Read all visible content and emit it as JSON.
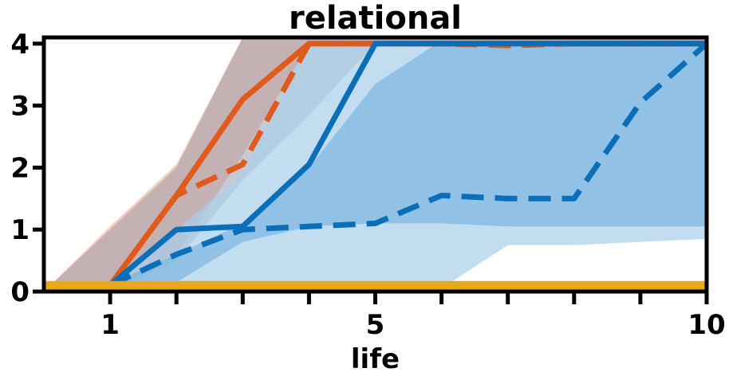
{
  "chart_data": {
    "type": "line",
    "title": "relational",
    "xlabel": "life",
    "ylabel": "",
    "xlim": [
      0,
      10
    ],
    "ylim": [
      0,
      4.1
    ],
    "x_tick_values": [
      1,
      2,
      3,
      4,
      5,
      6,
      7,
      8,
      9,
      10
    ],
    "x_tick_labels": [
      "1",
      "",
      "",
      "",
      "5",
      "",
      "",
      "",
      "",
      "10"
    ],
    "y_tick_values": [
      0,
      1,
      2,
      3,
      4
    ],
    "y_tick_labels": [
      "0",
      "1",
      "2",
      "3",
      "4"
    ],
    "grid": false,
    "legend": "none",
    "bands": [
      {
        "color": "#e8a080",
        "opacity": 0.55,
        "x": [
          0,
          1,
          2,
          3,
          4,
          5,
          6,
          7,
          8,
          9,
          10
        ],
        "lower": [
          0,
          0,
          0.6,
          2.2,
          4.0,
          4.0,
          4.0,
          4.0,
          4.0,
          4.0,
          4.0
        ],
        "upper": [
          0,
          1.05,
          2.05,
          4.1,
          4.1,
          4.1,
          4.1,
          4.1,
          4.1,
          4.1,
          4.1
        ]
      },
      {
        "color": "#9c9cb0",
        "opacity": 0.55,
        "x": [
          0,
          1,
          2,
          3,
          4,
          5,
          6,
          7,
          8,
          9,
          10
        ],
        "lower": [
          0,
          0,
          0.5,
          1.8,
          2.85,
          4.0,
          4.0,
          4.0,
          4.0,
          4.0,
          4.0
        ],
        "upper": [
          0,
          1.0,
          2.0,
          4.1,
          4.1,
          4.1,
          4.1,
          4.1,
          4.1,
          4.1,
          4.1
        ]
      },
      {
        "color": "#a9cfea",
        "opacity": 0.7,
        "x": [
          0,
          1,
          2,
          3,
          4,
          5,
          6,
          7,
          8,
          9,
          10
        ],
        "lower": [
          0,
          0,
          0,
          0,
          0,
          0,
          0.05,
          0.75,
          0.75,
          0.8,
          0.85
        ],
        "upper": [
          0,
          0.12,
          1.0,
          1.9,
          4.05,
          4.05,
          4.05,
          4.05,
          4.05,
          4.05,
          4.05
        ]
      },
      {
        "color": "#6fb0dd",
        "opacity": 0.6,
        "x": [
          0,
          1,
          2,
          3,
          4,
          5,
          6,
          7,
          8,
          9,
          10
        ],
        "lower": [
          0,
          0,
          0.15,
          0.8,
          1.05,
          1.1,
          1.1,
          1.05,
          1.05,
          1.05,
          1.05
        ],
        "upper": [
          0,
          0.12,
          0.6,
          1.1,
          2.0,
          3.35,
          4.05,
          4.05,
          4.05,
          4.05,
          4.05
        ]
      }
    ],
    "series": [
      {
        "color": "#e05a1c",
        "style": "solid",
        "x": [
          1,
          2,
          3,
          4,
          5,
          6,
          7,
          8,
          9,
          10
        ],
        "values": [
          0.1,
          1.55,
          3.1,
          4.0,
          4.0,
          4.0,
          4.0,
          4.0,
          4.0,
          4.0
        ]
      },
      {
        "color": "#e05a1c",
        "style": "dashed",
        "x": [
          1,
          2,
          3,
          4,
          5,
          6,
          7,
          8,
          9,
          10
        ],
        "values": [
          0.1,
          1.55,
          2.05,
          4.0,
          4.0,
          4.0,
          3.97,
          4.0,
          4.0,
          4.0
        ]
      },
      {
        "color": "#0a6fb8",
        "style": "solid",
        "x": [
          1,
          2,
          3,
          4,
          5,
          6,
          7,
          8,
          9,
          10
        ],
        "values": [
          0.1,
          1.0,
          1.05,
          2.05,
          4.0,
          4.0,
          4.0,
          4.0,
          4.0,
          4.0
        ]
      },
      {
        "color": "#0a6fb8",
        "style": "dashed",
        "x": [
          1,
          2,
          3,
          4,
          5,
          6,
          7,
          8,
          9,
          10
        ],
        "values": [
          0.1,
          0.6,
          1.0,
          1.05,
          1.1,
          1.55,
          1.5,
          1.5,
          3.05,
          4.0
        ]
      },
      {
        "color": "#e8a81c",
        "style": "solid",
        "x": [
          0,
          1,
          2,
          3,
          4,
          5,
          6,
          7,
          8,
          9,
          10
        ],
        "values": [
          0.1,
          0.1,
          0.1,
          0.1,
          0.1,
          0.1,
          0.1,
          0.1,
          0.1,
          0.1,
          0.1
        ]
      }
    ]
  }
}
